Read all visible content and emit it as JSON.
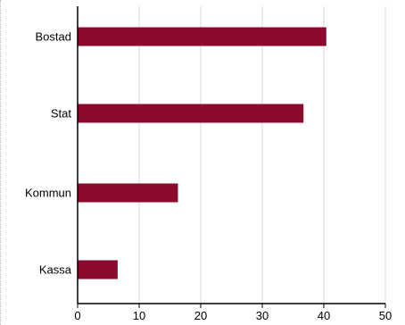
{
  "chart_data": {
    "type": "bar",
    "orientation": "horizontal",
    "categories": [
      "Bostad",
      "Stat",
      "Kommun",
      "Kassa"
    ],
    "series": [
      {
        "values": [
          40.4,
          36.7,
          16.3,
          6.5
        ]
      }
    ],
    "xlim": [
      0,
      50
    ],
    "xticks": [
      "0",
      "10",
      "20",
      "30",
      "40",
      "50"
    ],
    "grid": "vertical",
    "legend": "none",
    "title": "",
    "xlabel": "",
    "ylabel": "",
    "colors": {
      "bar": "#8b0a2e",
      "grid": "#d9d9d9",
      "axis": "#000000"
    }
  }
}
